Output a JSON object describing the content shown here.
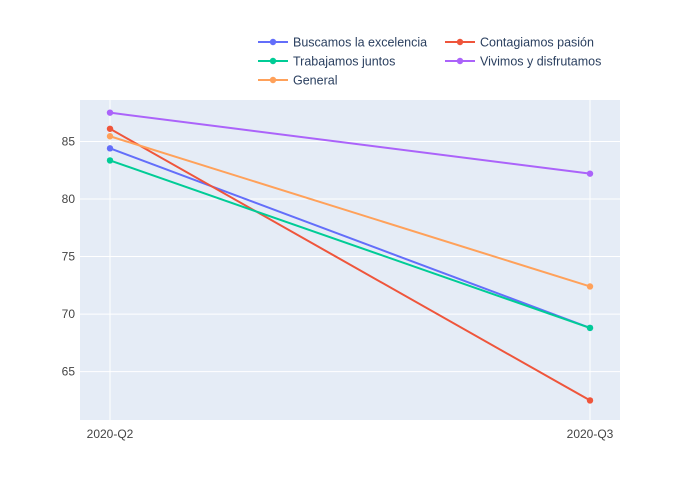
{
  "chart_data": {
    "type": "line",
    "title": "",
    "xlabel": "",
    "ylabel": "",
    "x": [
      "2020-Q2",
      "2020-Q3"
    ],
    "y_ticks": [
      65,
      70,
      75,
      80,
      85
    ],
    "ylim": [
      60.8,
      88.6
    ],
    "grid": true,
    "legend_position": "top",
    "series": [
      {
        "name": "Buscamos la excelencia",
        "color": "#636efa",
        "values": [
          84.4,
          68.8
        ]
      },
      {
        "name": "Contagiamos pasión",
        "color": "#EF553B",
        "values": [
          86.1,
          62.5
        ]
      },
      {
        "name": "Trabajamos juntos",
        "color": "#00cc96",
        "values": [
          83.35,
          68.8
        ]
      },
      {
        "name": "Vivimos y disfrutamos",
        "color": "#ab63fa",
        "values": [
          87.5,
          82.2
        ]
      },
      {
        "name": "General",
        "color": "#FFA15A",
        "values": [
          85.45,
          72.4
        ]
      }
    ]
  }
}
